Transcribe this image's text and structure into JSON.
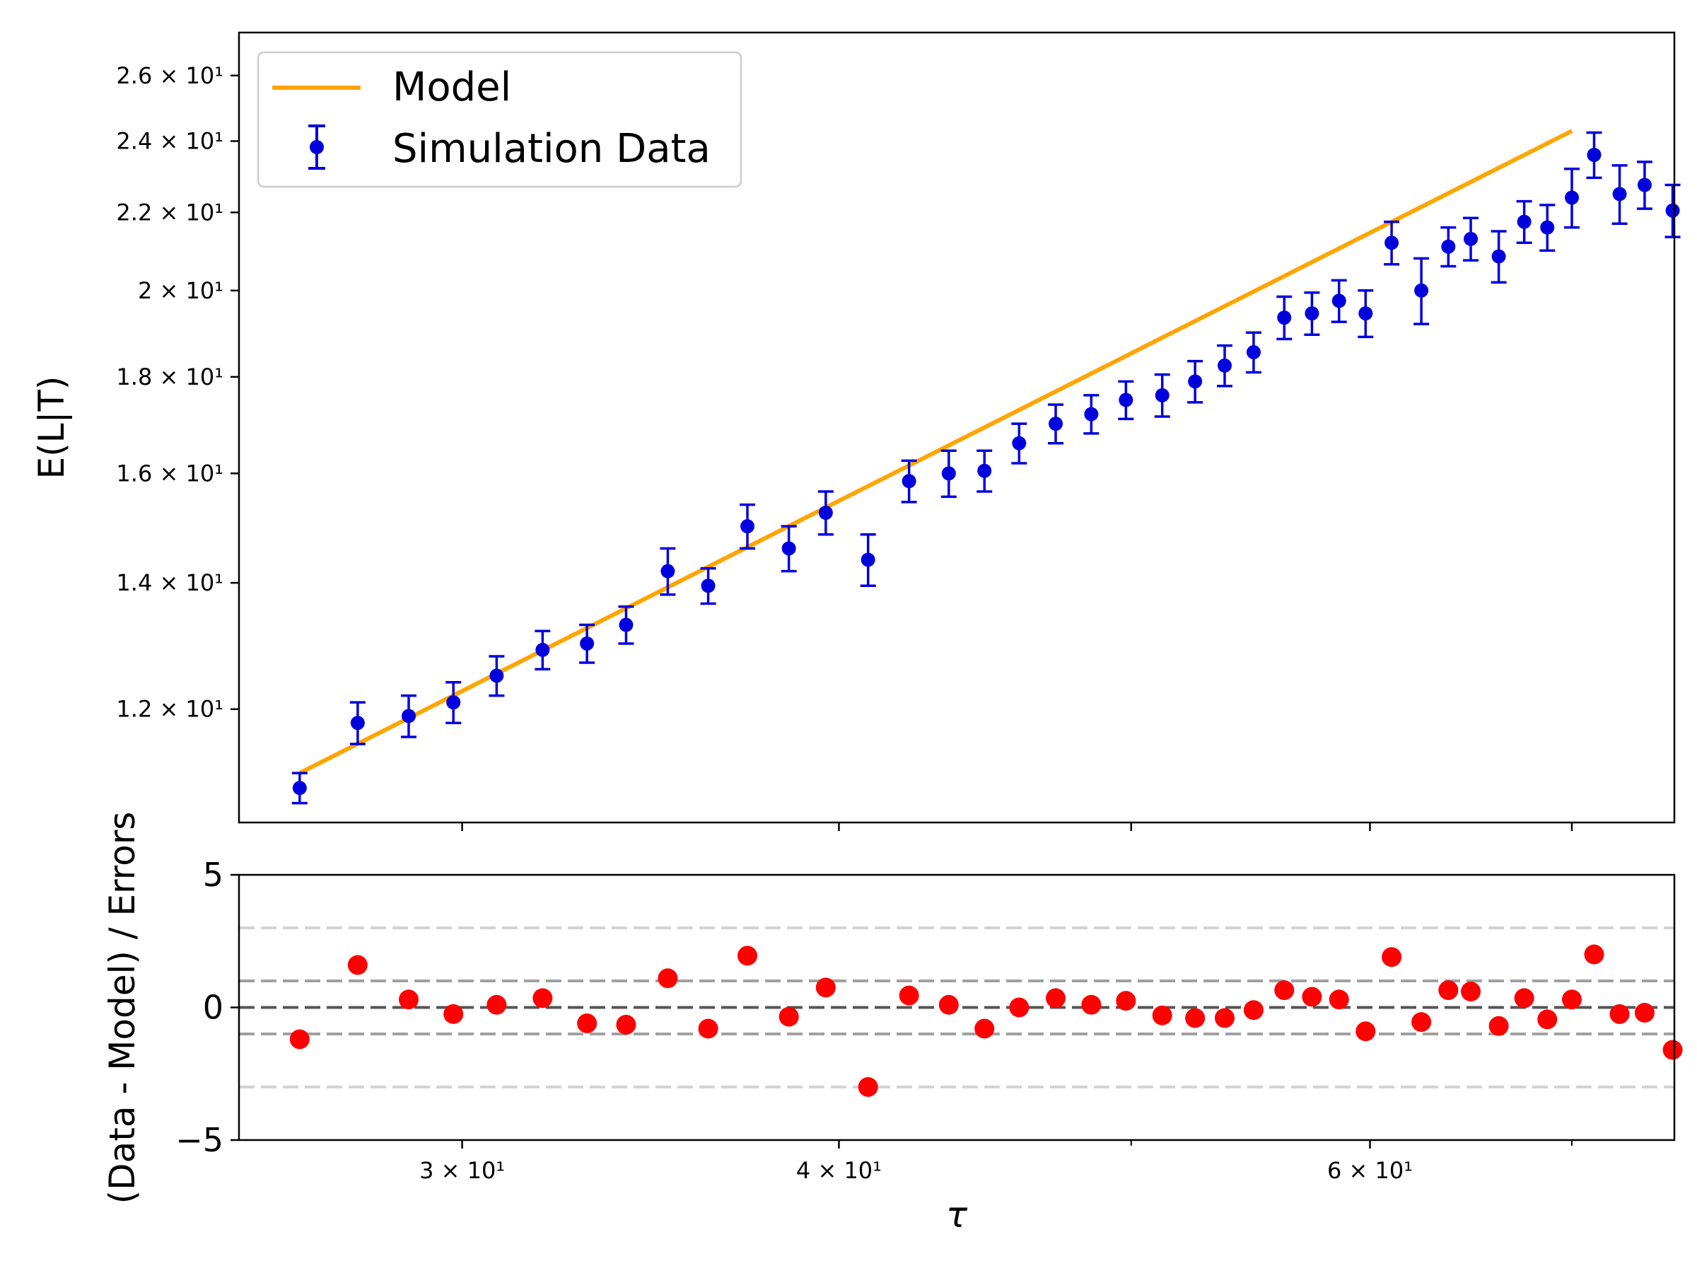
{
  "chart_data": [
    {
      "type": "scatter",
      "panel": "top",
      "title": "",
      "xlabel": "",
      "ylabel": "E(L|T)",
      "x_scale": "log",
      "y_scale": "log",
      "xlim": [
        25.3,
        75.7
      ],
      "ylim": [
        10.45,
        27.4
      ],
      "yticks": [
        {
          "value": 12,
          "label": "1.2 × 10¹"
        },
        {
          "value": 14,
          "label": "1.4 × 10¹"
        },
        {
          "value": 16,
          "label": "1.6 × 10¹"
        },
        {
          "value": 18,
          "label": "1.8 × 10¹"
        },
        {
          "value": 20,
          "label": "2 × 10¹"
        },
        {
          "value": 22,
          "label": "2.2 × 10¹"
        },
        {
          "value": 24,
          "label": "2.4 × 10¹"
        },
        {
          "value": 26,
          "label": "2.6 × 10¹"
        }
      ],
      "legend_position": "top-left",
      "grid": false,
      "series": [
        {
          "name": "Model",
          "kind": "line",
          "color": "#ffa500",
          "x": [
            26.5,
            70.0
          ],
          "y": [
            11.1,
            24.3
          ]
        },
        {
          "name": "Simulation Data",
          "kind": "errorbar",
          "color": "#0000dd",
          "x": [
            26.5,
            27.7,
            28.8,
            29.8,
            30.8,
            31.9,
            33.0,
            34.0,
            35.1,
            36.2,
            37.3,
            38.5,
            39.6,
            40.9,
            42.2,
            43.5,
            44.7,
            45.9,
            47.2,
            48.5,
            49.8,
            51.2,
            52.5,
            53.7,
            54.9,
            56.2,
            57.4,
            58.6,
            59.8,
            61.0,
            62.4,
            63.7,
            64.8,
            66.2,
            67.5,
            68.7,
            70.0,
            71.2,
            72.6,
            74.0,
            75.6
          ],
          "y": [
            10.9,
            11.8,
            11.9,
            12.1,
            12.5,
            12.9,
            13.0,
            13.3,
            14.2,
            13.95,
            15.0,
            14.6,
            15.25,
            14.4,
            15.85,
            16.0,
            16.05,
            16.6,
            17.0,
            17.2,
            17.5,
            17.6,
            17.9,
            18.25,
            18.55,
            19.35,
            19.45,
            19.75,
            19.45,
            21.2,
            20.0,
            21.1,
            21.3,
            20.85,
            21.75,
            21.6,
            22.4,
            23.6,
            22.5,
            22.75,
            22.05
          ],
          "yerr": [
            0.2,
            0.3,
            0.3,
            0.3,
            0.3,
            0.3,
            0.3,
            0.3,
            0.4,
            0.3,
            0.4,
            0.4,
            0.4,
            0.45,
            0.4,
            0.45,
            0.4,
            0.4,
            0.4,
            0.4,
            0.4,
            0.45,
            0.45,
            0.45,
            0.45,
            0.5,
            0.5,
            0.5,
            0.55,
            0.55,
            0.8,
            0.5,
            0.55,
            0.65,
            0.55,
            0.6,
            0.8,
            0.65,
            0.8,
            0.65,
            0.7
          ]
        }
      ]
    },
    {
      "type": "scatter",
      "panel": "bottom",
      "title": "",
      "xlabel": "τ",
      "ylabel": "(Data - Model) / Errors",
      "x_scale": "log",
      "xlim": [
        25.3,
        75.7
      ],
      "ylim": [
        -5,
        5
      ],
      "xticks": [
        {
          "value": 30,
          "label": "3 × 10¹"
        },
        {
          "value": 40,
          "label": "4 × 10¹"
        },
        {
          "value": 60,
          "label": "6 × 10¹"
        }
      ],
      "xticks_minor": [
        50,
        70
      ],
      "yticks": [
        {
          "value": 5,
          "label": "5"
        },
        {
          "value": 0,
          "label": "0"
        },
        {
          "value": -5,
          "label": "−5"
        }
      ],
      "reference_lines": [
        {
          "y": 3,
          "color": "#d3d3d3"
        },
        {
          "y": 1,
          "color": "#a0a0a0"
        },
        {
          "y": 0,
          "color": "#555555"
        },
        {
          "y": -1,
          "color": "#a0a0a0"
        },
        {
          "y": -3,
          "color": "#d3d3d3"
        }
      ],
      "series": [
        {
          "kind": "scatter",
          "color": "#ff0000",
          "x": [
            26.5,
            27.7,
            28.8,
            29.8,
            30.8,
            31.9,
            33.0,
            34.0,
            35.1,
            36.2,
            37.3,
            38.5,
            39.6,
            40.9,
            42.2,
            43.5,
            44.7,
            45.9,
            47.2,
            48.5,
            49.8,
            51.2,
            52.5,
            53.7,
            54.9,
            56.2,
            57.4,
            58.6,
            59.8,
            61.0,
            62.4,
            63.7,
            64.8,
            66.2,
            67.5,
            68.7,
            70.0,
            71.2,
            72.6,
            74.0,
            75.6
          ],
          "y": [
            -1.2,
            1.6,
            0.3,
            -0.25,
            0.1,
            0.35,
            -0.6,
            -0.65,
            1.1,
            -0.8,
            1.95,
            -0.35,
            0.75,
            -3.0,
            0.45,
            0.1,
            -0.8,
            0.0,
            0.35,
            0.1,
            0.25,
            -0.3,
            -0.4,
            -0.4,
            -0.1,
            0.65,
            0.4,
            0.3,
            -0.9,
            1.9,
            -0.55,
            0.65,
            0.6,
            -0.7,
            0.35,
            -0.45,
            0.3,
            2.0,
            -0.25,
            -0.2,
            -1.6
          ]
        }
      ]
    }
  ]
}
